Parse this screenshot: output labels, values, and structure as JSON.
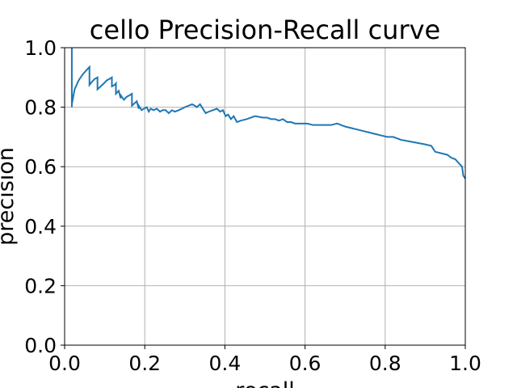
{
  "chart_data": {
    "type": "line",
    "title": "cello Precision-Recall curve",
    "xlabel": "recall",
    "ylabel": "precision",
    "xlim": [
      0.0,
      1.0
    ],
    "ylim": [
      0.0,
      1.0
    ],
    "xticks": [
      "0.0",
      "0.2",
      "0.4",
      "0.6",
      "0.8",
      "1.0"
    ],
    "yticks": [
      "0.0",
      "0.2",
      "0.4",
      "0.6",
      "0.8",
      "1.0"
    ],
    "grid": true,
    "line_color": "#1f77b4",
    "series": [
      {
        "x": [
          0.018,
          0.018,
          0.018,
          0.025,
          0.035,
          0.045,
          0.055,
          0.062,
          0.062,
          0.068,
          0.075,
          0.082,
          0.082,
          0.09,
          0.098,
          0.105,
          0.112,
          0.118,
          0.118,
          0.125,
          0.128,
          0.128,
          0.135,
          0.14,
          0.14,
          0.148,
          0.155,
          0.162,
          0.168,
          0.168,
          0.172,
          0.18,
          0.185,
          0.185,
          0.192,
          0.198,
          0.205,
          0.21,
          0.215,
          0.222,
          0.23,
          0.238,
          0.245,
          0.252,
          0.26,
          0.268,
          0.275,
          0.285,
          0.3,
          0.318,
          0.325,
          0.33,
          0.338,
          0.345,
          0.352,
          0.36,
          0.37,
          0.38,
          0.388,
          0.395,
          0.402,
          0.408,
          0.415,
          0.422,
          0.43,
          0.44,
          0.455,
          0.475,
          0.495,
          0.505,
          0.515,
          0.525,
          0.535,
          0.545,
          0.555,
          0.565,
          0.575,
          0.59,
          0.605,
          0.62,
          0.635,
          0.65,
          0.665,
          0.68,
          0.69,
          0.7,
          0.715,
          0.73,
          0.745,
          0.76,
          0.775,
          0.79,
          0.805,
          0.82,
          0.84,
          0.86,
          0.88,
          0.9,
          0.915,
          0.925,
          0.94,
          0.955,
          0.965,
          0.975,
          0.985,
          0.992,
          0.995,
          1.0
        ],
        "y": [
          1.0,
          0.8,
          0.81,
          0.86,
          0.89,
          0.91,
          0.925,
          0.935,
          0.875,
          0.885,
          0.895,
          0.9,
          0.86,
          0.87,
          0.88,
          0.89,
          0.895,
          0.9,
          0.87,
          0.875,
          0.88,
          0.845,
          0.855,
          0.83,
          0.84,
          0.825,
          0.835,
          0.84,
          0.845,
          0.805,
          0.81,
          0.82,
          0.795,
          0.805,
          0.79,
          0.795,
          0.8,
          0.785,
          0.795,
          0.79,
          0.795,
          0.785,
          0.79,
          0.79,
          0.78,
          0.79,
          0.785,
          0.79,
          0.8,
          0.81,
          0.805,
          0.8,
          0.81,
          0.795,
          0.78,
          0.785,
          0.79,
          0.795,
          0.785,
          0.79,
          0.77,
          0.775,
          0.76,
          0.77,
          0.75,
          0.755,
          0.76,
          0.77,
          0.765,
          0.765,
          0.76,
          0.76,
          0.755,
          0.76,
          0.75,
          0.75,
          0.745,
          0.745,
          0.745,
          0.74,
          0.74,
          0.74,
          0.74,
          0.745,
          0.74,
          0.735,
          0.73,
          0.725,
          0.72,
          0.715,
          0.71,
          0.705,
          0.7,
          0.7,
          0.69,
          0.685,
          0.68,
          0.675,
          0.67,
          0.65,
          0.645,
          0.64,
          0.63,
          0.625,
          0.61,
          0.6,
          0.57,
          0.56
        ]
      }
    ]
  }
}
